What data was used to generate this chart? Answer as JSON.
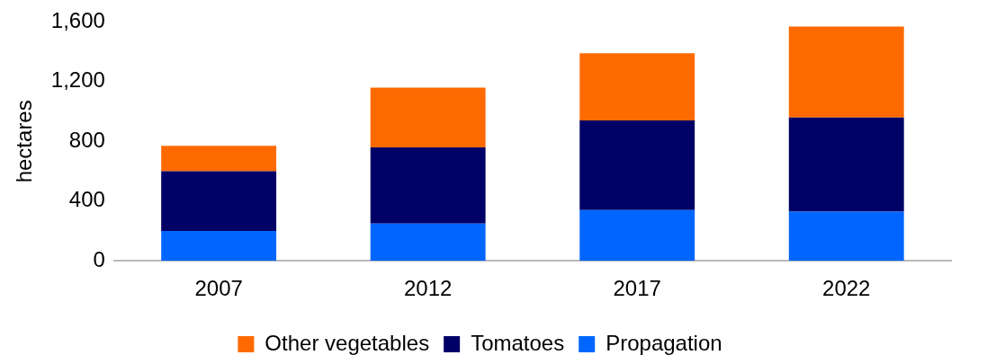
{
  "chart_data": {
    "type": "bar",
    "ylabel": "hectares",
    "categories": [
      "2007",
      "2012",
      "2017",
      "2022"
    ],
    "stacked": true,
    "series": [
      {
        "name": "Propagation",
        "color": "#0066ff",
        "values": [
          200,
          250,
          340,
          330
        ]
      },
      {
        "name": "Tomatoes",
        "color": "#000066",
        "values": [
          400,
          510,
          600,
          630
        ]
      },
      {
        "name": "Other vegetables",
        "color": "#ff6a00",
        "values": [
          170,
          400,
          450,
          610
        ]
      }
    ],
    "ylim": [
      0,
      1600
    ],
    "yticks": [
      {
        "value": 0,
        "label": "0"
      },
      {
        "value": 400,
        "label": "400"
      },
      {
        "value": 800,
        "label": "800"
      },
      {
        "value": 1200,
        "label": "1,200"
      },
      {
        "value": 1600,
        "label": "1,600"
      }
    ],
    "grid": false,
    "legend": "bottom"
  }
}
